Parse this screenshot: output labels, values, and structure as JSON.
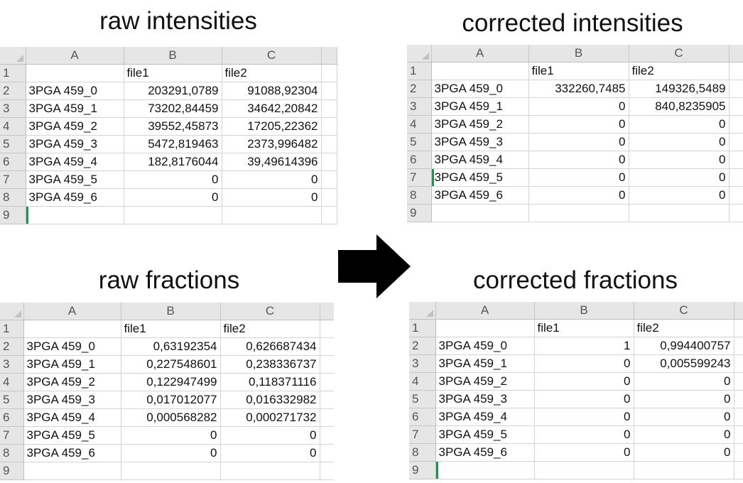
{
  "titles": {
    "raw_intensities": "raw intensities",
    "corrected_intensities": "corrected intensities",
    "raw_fractions": "raw fractions",
    "corrected_fractions": "corrected fractions"
  },
  "columns": [
    "A",
    "B",
    "C"
  ],
  "row_numbers": [
    "1",
    "2",
    "3",
    "4",
    "5",
    "6",
    "7",
    "8",
    "9"
  ],
  "header_row": [
    "",
    "file1",
    "file2"
  ],
  "row_labels": [
    "3PGA 459_0",
    "3PGA 459_1",
    "3PGA 459_2",
    "3PGA 459_3",
    "3PGA 459_4",
    "3PGA 459_5",
    "3PGA 459_6"
  ],
  "tables": {
    "raw_intensities": [
      [
        "203291,0789",
        "91088,92304"
      ],
      [
        "73202,84459",
        "34642,20842"
      ],
      [
        "39552,45873",
        "17205,22362"
      ],
      [
        "5472,819463",
        "2373,996482"
      ],
      [
        "182,8176044",
        "39,49614396"
      ],
      [
        "0",
        "0"
      ],
      [
        "0",
        "0"
      ]
    ],
    "corrected_intensities": [
      [
        "332260,7485",
        "149326,5489"
      ],
      [
        "0",
        "840,8235905"
      ],
      [
        "0",
        "0"
      ],
      [
        "0",
        "0"
      ],
      [
        "0",
        "0"
      ],
      [
        "0",
        "0"
      ],
      [
        "0",
        "0"
      ]
    ],
    "raw_fractions": [
      [
        "0,63192354",
        "0,626687434"
      ],
      [
        "0,227548601",
        "0,238336737"
      ],
      [
        "0,122947499",
        "0,118371116"
      ],
      [
        "0,017012077",
        "0,016332982"
      ],
      [
        "0,000568282",
        "0,000271732"
      ],
      [
        "0",
        "0"
      ],
      [
        "0",
        "0"
      ]
    ],
    "corrected_fractions": [
      [
        "1",
        "0,994400757"
      ],
      [
        "0",
        "0,005599243"
      ],
      [
        "0",
        "0"
      ],
      [
        "0",
        "0"
      ],
      [
        "0",
        "0"
      ],
      [
        "0",
        "0"
      ],
      [
        "0",
        "0"
      ]
    ]
  },
  "arrow_icon": "right-arrow-icon"
}
